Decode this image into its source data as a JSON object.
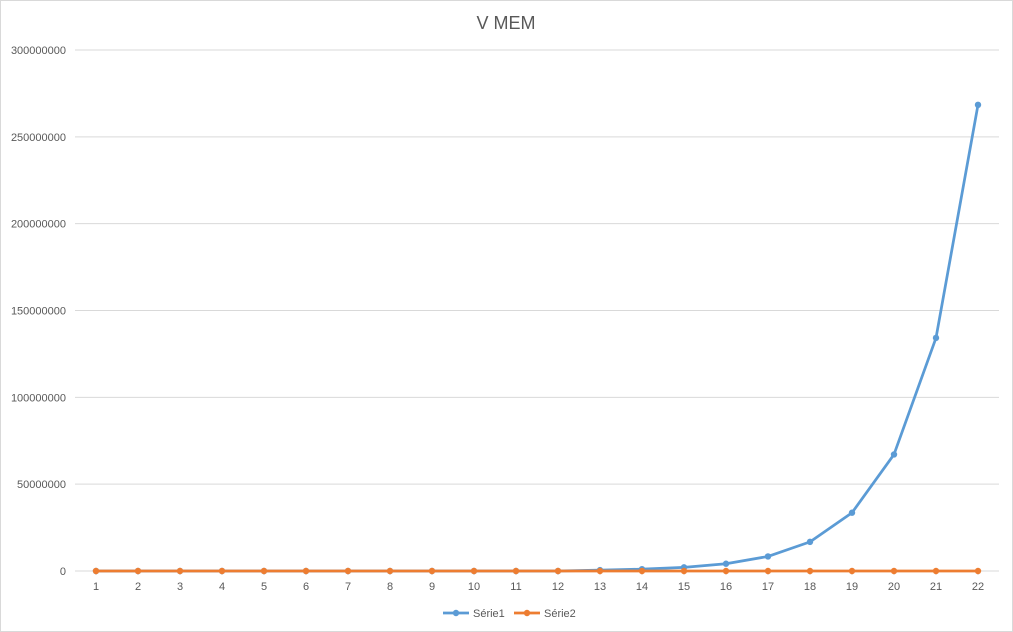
{
  "chart_data": {
    "type": "line",
    "title": "V MEM",
    "xlabel": "",
    "ylabel": "",
    "categories": [
      "1",
      "2",
      "3",
      "4",
      "5",
      "6",
      "7",
      "8",
      "9",
      "10",
      "11",
      "12",
      "13",
      "14",
      "15",
      "16",
      "17",
      "18",
      "19",
      "20",
      "21",
      "22"
    ],
    "ylim": [
      0,
      300000000
    ],
    "yticks": [
      "0",
      "50000000",
      "100000000",
      "150000000",
      "200000000",
      "250000000",
      "300000000"
    ],
    "grid": true,
    "legend_position": "bottom",
    "series": [
      {
        "name": "Série1",
        "color": "#5b9bd5",
        "values": [
          2,
          4,
          8,
          16,
          32,
          64,
          128,
          256,
          512,
          1024,
          2048,
          4096,
          524288,
          1048576,
          2097152,
          4194304,
          8388608,
          16777216,
          33554432,
          67108864,
          134217728,
          268435456
        ]
      },
      {
        "name": "Série2",
        "color": "#ed7d31",
        "values": [
          0,
          0,
          0,
          0,
          0,
          0,
          0,
          0,
          0,
          0,
          0,
          0,
          0,
          0,
          0,
          0,
          0,
          0,
          0,
          0,
          0,
          0
        ]
      }
    ]
  }
}
